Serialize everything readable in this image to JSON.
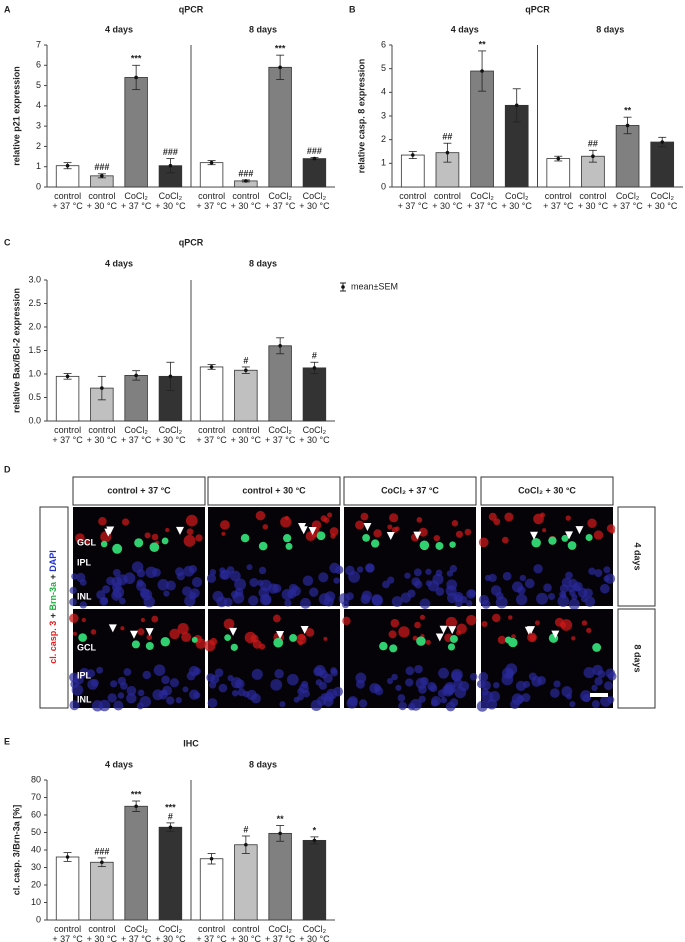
{
  "chart_data": [
    {
      "type": "bar",
      "panel": "A",
      "title": "qPCR",
      "groups": [
        "4 days",
        "8 days"
      ],
      "y_label": "relative p21 expression",
      "categories": [
        "control + 37 °C",
        "control + 30 °C",
        "CoCl₂ + 37 °C",
        "CoCl₂ + 30 °C",
        "control + 37 °C",
        "control + 30 °C",
        "CoCl₂ + 37 °C",
        "CoCl₂ + 30 °C"
      ],
      "values": [
        1.05,
        0.55,
        5.4,
        1.05,
        1.2,
        0.3,
        5.9,
        1.4
      ],
      "errors": [
        0.15,
        0.1,
        0.6,
        0.35,
        0.1,
        0.05,
        0.6,
        0.05
      ],
      "annotations": [
        [],
        [
          "###"
        ],
        [
          "***"
        ],
        [
          "###"
        ],
        [],
        [
          "###"
        ],
        [
          "***"
        ],
        [
          "###"
        ]
      ],
      "colors": [
        "#ffffff",
        "#c0c0c0",
        "#808080",
        "#333333"
      ],
      "ylim": [
        0,
        7
      ],
      "yticks": [
        0,
        1,
        2,
        3,
        4,
        5,
        6,
        7
      ]
    },
    {
      "type": "bar",
      "panel": "B",
      "title": "qPCR",
      "groups": [
        "4 days",
        "8 days"
      ],
      "y_label": "relative casp. 8 expression",
      "categories": [
        "control + 37 °C",
        "control + 30 °C",
        "CoCl₂ + 37 °C",
        "CoCl₂ + 30 °C",
        "control + 37 °C",
        "control + 30 °C",
        "CoCl₂ + 37 °C",
        "CoCl₂ + 30 °C"
      ],
      "values": [
        1.35,
        1.45,
        4.9,
        3.45,
        1.2,
        1.3,
        2.6,
        1.9
      ],
      "errors": [
        0.15,
        0.4,
        0.85,
        0.7,
        0.1,
        0.25,
        0.35,
        0.2
      ],
      "annotations": [
        [],
        [
          "##"
        ],
        [
          "**"
        ],
        [],
        [],
        [
          "##"
        ],
        [
          "**"
        ],
        []
      ],
      "colors": [
        "#ffffff",
        "#c0c0c0",
        "#808080",
        "#333333"
      ],
      "ylim": [
        0,
        6
      ],
      "yticks": [
        0,
        1,
        2,
        3,
        4,
        5,
        6
      ]
    },
    {
      "type": "bar",
      "panel": "C",
      "title": "qPCR",
      "groups": [
        "4 days",
        "8 days"
      ],
      "y_label": "relative Bax/Bcl-2 expression",
      "categories": [
        "control + 37 °C",
        "control + 30 °C",
        "CoCl₂ + 37 °C",
        "CoCl₂ + 30 °C",
        "control + 37 °C",
        "control + 30 °C",
        "CoCl₂ + 37 °C",
        "CoCl₂ + 30 °C"
      ],
      "values": [
        0.95,
        0.7,
        0.97,
        0.95,
        1.15,
        1.08,
        1.6,
        1.13
      ],
      "errors": [
        0.06,
        0.25,
        0.1,
        0.3,
        0.05,
        0.07,
        0.17,
        0.12
      ],
      "annotations": [
        [],
        [],
        [],
        [],
        [],
        [
          "#"
        ],
        [],
        [
          "#"
        ]
      ],
      "colors": [
        "#ffffff",
        "#c0c0c0",
        "#808080",
        "#333333"
      ],
      "legend": "mean±SEM",
      "ylim": [
        0,
        3
      ],
      "yticks": [
        {
          "value": 0,
          "label": "0.0"
        },
        0.5,
        {
          "value": 1,
          "label": "1.0"
        },
        1.5,
        {
          "value": 2,
          "label": "2.0"
        },
        2.5,
        {
          "value": 3,
          "label": "3.0"
        }
      ]
    },
    {
      "type": "bar",
      "panel": "E",
      "title": "IHC",
      "groups": [
        "4 days",
        "8 days"
      ],
      "y_label": "cl. casp. 3/Brn-3a [%]",
      "categories": [
        "control + 37 °C",
        "control + 30 °C",
        "CoCl₂ + 37 °C",
        "CoCl₂ + 30 °C",
        "control + 37 °C",
        "control + 30 °C",
        "CoCl₂ + 37 °C",
        "CoCl₂ + 30 °C"
      ],
      "values": [
        36,
        33,
        65,
        53,
        35,
        43,
        49.5,
        45.5
      ],
      "errors": [
        2.5,
        2.5,
        3,
        2.5,
        3,
        5,
        4.5,
        2
      ],
      "annotations": [
        [],
        [
          "###"
        ],
        [
          "***"
        ],
        [
          "***",
          "#"
        ],
        [],
        [
          "#"
        ],
        [
          "**"
        ],
        [
          "*"
        ]
      ],
      "colors": [
        "#ffffff",
        "#c0c0c0",
        "#808080",
        "#333333"
      ],
      "ylim": [
        0,
        80
      ],
      "yticks": [
        0,
        10,
        20,
        30,
        40,
        50,
        60,
        70,
        80
      ]
    }
  ],
  "image_panel": {
    "panel": "D",
    "columns": [
      "control + 37 °C",
      "control + 30 °C",
      "CoCl₂ + 37 °C",
      "CoCl₂ + 30 °C"
    ],
    "rows": [
      "4 days",
      "8 days"
    ],
    "layers": [
      "GCL",
      "IPL",
      "INL"
    ],
    "stain": [
      {
        "text": "cl. casp. 3",
        "color": "#e02020"
      },
      {
        "text": " + ",
        "color": "#222222"
      },
      {
        "text": "Brn-3a",
        "color": "#20b040"
      },
      {
        "text": " + ",
        "color": "#222222"
      },
      {
        "text": "DAPI",
        "color": "#2030d0"
      }
    ]
  }
}
